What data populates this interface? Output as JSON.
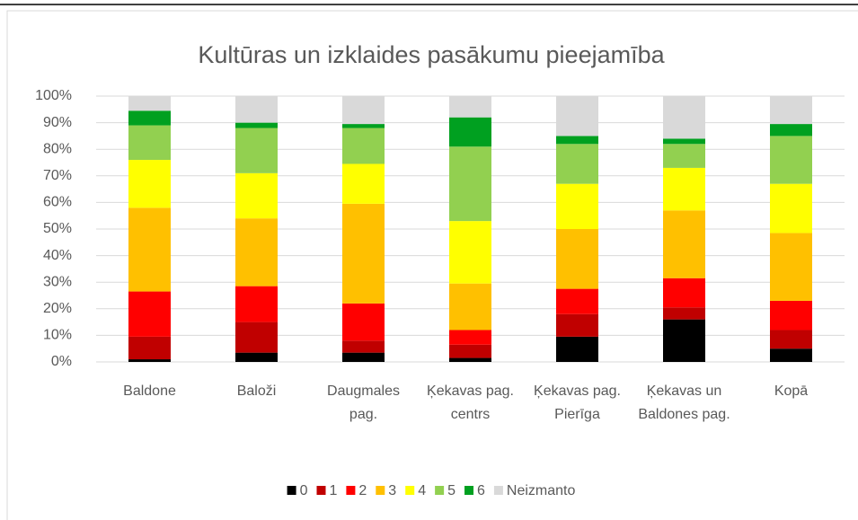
{
  "chart_data": {
    "type": "bar",
    "stacked": true,
    "title": "Kultūras un izklaides pasākumu pieejamība",
    "categories": [
      "Baldone",
      "Baloži",
      "Daugmales pag.",
      "Ķekavas pag. centrs",
      "Ķekavas pag. Pierīga",
      "Ķekavas un Baldones pag.",
      "Kopā"
    ],
    "series": [
      {
        "name": "0",
        "color": "#000000",
        "values": [
          1,
          3.5,
          3.5,
          1.5,
          9.5,
          16,
          5
        ]
      },
      {
        "name": "1",
        "color": "#c00000",
        "values": [
          8.5,
          11.5,
          4.5,
          5,
          8.5,
          4.5,
          7
        ]
      },
      {
        "name": "2",
        "color": "#ff0000",
        "values": [
          17,
          13.5,
          14,
          5.5,
          9.5,
          11,
          11
        ]
      },
      {
        "name": "3",
        "color": "#ffc000",
        "values": [
          31.5,
          25.5,
          37.5,
          17.5,
          22.5,
          25.5,
          25.5
        ]
      },
      {
        "name": "4",
        "color": "#ffff00",
        "values": [
          18,
          17,
          15,
          23.5,
          17,
          16,
          18.5
        ]
      },
      {
        "name": "5",
        "color": "#92d050",
        "values": [
          13,
          17,
          13.5,
          28,
          15,
          9,
          18
        ]
      },
      {
        "name": "6",
        "color": "#00a020",
        "values": [
          5.5,
          2,
          1.5,
          11,
          3,
          2,
          4.5
        ]
      },
      {
        "name": "Neizmanto",
        "color": "#d9d9d9",
        "values": [
          5.5,
          10,
          10.5,
          8,
          15,
          16,
          10.5
        ]
      }
    ],
    "ylim": [
      0,
      100
    ],
    "yticks": [
      {
        "value": 0,
        "label": "0%"
      },
      {
        "value": 10,
        "label": "10%"
      },
      {
        "value": 20,
        "label": "20%"
      },
      {
        "value": 30,
        "label": "30%"
      },
      {
        "value": 40,
        "label": "40%"
      },
      {
        "value": 50,
        "label": "50%"
      },
      {
        "value": 60,
        "label": "60%"
      },
      {
        "value": 70,
        "label": "70%"
      },
      {
        "value": 80,
        "label": "80%"
      },
      {
        "value": 90,
        "label": "90%"
      },
      {
        "value": 100,
        "label": "100%"
      }
    ],
    "grid": true,
    "legend": "bottom"
  }
}
